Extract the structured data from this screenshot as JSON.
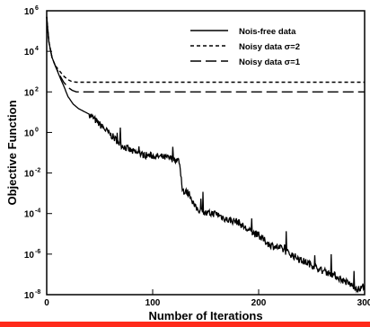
{
  "chart_data": {
    "type": "line",
    "title": "",
    "xlabel": "Number of Iterations",
    "ylabel": "Objective Function",
    "xlim": [
      0,
      300
    ],
    "ylim": [
      1e-08,
      1000000.0
    ],
    "yscale": "log",
    "x_ticks": [
      {
        "value": 0,
        "label": "0"
      },
      {
        "value": 100,
        "label": "100"
      },
      {
        "value": 200,
        "label": "200"
      },
      {
        "value": 300,
        "label": "300"
      }
    ],
    "y_ticks": [
      {
        "value": 1000000.0,
        "label": "10",
        "exp": "6"
      },
      {
        "value": 10000.0,
        "label": "10",
        "exp": "4"
      },
      {
        "value": 100.0,
        "label": "10",
        "exp": "2"
      },
      {
        "value": 1.0,
        "label": "10",
        "exp": "0"
      },
      {
        "value": 0.01,
        "label": "10",
        "exp": "-2"
      },
      {
        "value": 0.0001,
        "label": "10",
        "exp": "-4"
      },
      {
        "value": 1e-06,
        "label": "10",
        "exp": "-6"
      },
      {
        "value": 1e-08,
        "label": "10",
        "exp": "-8"
      }
    ],
    "grid": false,
    "legend": {
      "position": "top-right"
    },
    "series": [
      {
        "name": "Nois-free data",
        "style": "solid",
        "x": [
          0,
          2,
          5,
          8,
          12,
          16,
          20,
          25,
          30,
          40,
          50,
          60,
          70,
          80,
          90,
          100,
          110,
          120,
          125,
          128,
          130,
          132,
          135,
          140,
          150,
          160,
          170,
          180,
          190,
          200,
          210,
          220,
          230,
          240,
          250,
          260,
          270,
          280,
          290,
          295,
          300
        ],
        "y": [
          500000.0,
          30000.0,
          5000.0,
          2000.0,
          600,
          200,
          60,
          25,
          15,
          8,
          2.5,
          0.8,
          0.25,
          0.12,
          0.08,
          0.07,
          0.06,
          0.05,
          0.04,
          0.002,
          0.001,
          0.0012,
          0.0009,
          0.0002,
          0.0001,
          0.0001,
          5e-05,
          4e-05,
          1.5e-05,
          8e-06,
          3e-06,
          2e-06,
          1e-06,
          5e-07,
          3e-07,
          1.5e-07,
          1e-07,
          5e-08,
          2.5e-08,
          1.8e-08,
          3e-08
        ]
      },
      {
        "name": "Noisy data σ=2",
        "style": "dashed",
        "x": [
          0,
          2,
          5,
          8,
          12,
          16,
          20,
          24,
          28,
          35,
          300
        ],
        "y": [
          500000.0,
          30000.0,
          5000.0,
          2000.0,
          1100,
          600,
          400,
          320,
          300,
          300,
          300
        ]
      },
      {
        "name": "Noisy data σ=1",
        "style": "longdash",
        "x": [
          0,
          2,
          5,
          8,
          12,
          16,
          20,
          24,
          28,
          35,
          300
        ],
        "y": [
          500000.0,
          30000.0,
          5000.0,
          2000.0,
          700,
          300,
          170,
          120,
          100,
          100,
          100
        ]
      }
    ]
  }
}
